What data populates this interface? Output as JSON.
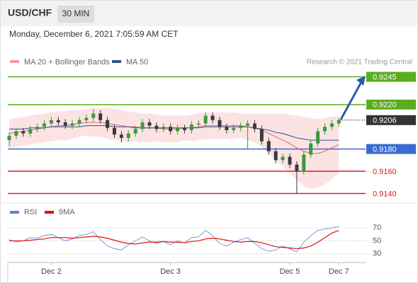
{
  "header": {
    "symbol": "USD/CHF",
    "timeframe": "30 MIN",
    "datetime": "Monday, December 6, 2021 7:05:59 AM CET"
  },
  "chart_data": [
    {
      "type": "candlestick",
      "legend": [
        {
          "name": "MA 20 + Bollinger Bands",
          "color": "#f49a9a"
        },
        {
          "name": "MA 50",
          "color": "#2c5190"
        }
      ],
      "credit": "Research © 2021 Trading Central",
      "categories": [
        null,
        null,
        null,
        null,
        null,
        null,
        "Dec 2",
        null,
        null,
        null,
        null,
        null,
        null,
        null,
        null,
        null,
        null,
        null,
        null,
        null,
        null,
        null,
        null,
        "Dec 3",
        null,
        null,
        null,
        null,
        null,
        null,
        null,
        null,
        null,
        null,
        null,
        null,
        null,
        null,
        null,
        null,
        "Dec 5",
        null,
        null,
        null,
        null,
        null,
        null,
        "Dec 7"
      ],
      "ylim": [
        0.9132,
        0.9253
      ],
      "up_color": "#3a9a3a",
      "down_color": "#3a3a3a",
      "open": [
        0.9188,
        0.9192,
        0.9196,
        0.9194,
        0.9198,
        0.92,
        0.9203,
        0.9206,
        0.9204,
        0.9201,
        0.9203,
        0.9206,
        0.9208,
        0.9212,
        0.9206,
        0.9199,
        0.9193,
        0.919,
        0.9194,
        0.9198,
        0.9204,
        0.9201,
        0.9198,
        0.92,
        0.9196,
        0.9199,
        0.9197,
        0.9202,
        0.9203,
        0.921,
        0.9206,
        0.92,
        0.9197,
        0.9199,
        0.9201,
        0.9203,
        0.9198,
        0.9187,
        0.9178,
        0.917,
        0.9173,
        0.9166,
        0.916,
        0.9175,
        0.9185,
        0.9196,
        0.92,
        0.9203
      ],
      "high": [
        0.9195,
        0.9199,
        0.9199,
        0.9201,
        0.9203,
        0.9206,
        0.9209,
        0.9209,
        0.9207,
        0.9206,
        0.9209,
        0.9211,
        0.9216,
        0.9215,
        0.9209,
        0.9202,
        0.9196,
        0.9197,
        0.9201,
        0.9207,
        0.9207,
        0.9204,
        0.9203,
        0.9203,
        0.9202,
        0.9202,
        0.9205,
        0.9206,
        0.9213,
        0.9213,
        0.9209,
        0.9203,
        0.9202,
        0.9204,
        0.9206,
        0.9206,
        0.9201,
        0.919,
        0.9181,
        0.9176,
        0.9176,
        0.9169,
        0.9178,
        0.9188,
        0.9199,
        0.9203,
        0.9206,
        0.9208
      ],
      "low": [
        0.9182,
        0.9189,
        0.9191,
        0.9191,
        0.9195,
        0.9197,
        0.92,
        0.9201,
        0.9198,
        0.9198,
        0.92,
        0.9203,
        0.9205,
        0.9203,
        0.9196,
        0.919,
        0.9186,
        0.9187,
        0.9191,
        0.9195,
        0.9198,
        0.9195,
        0.9195,
        0.9193,
        0.9193,
        0.9194,
        0.9194,
        0.9199,
        0.92,
        0.9203,
        0.9197,
        0.9194,
        0.9194,
        0.9196,
        0.918,
        0.9195,
        0.9184,
        0.9175,
        0.9167,
        0.9167,
        0.9163,
        0.914,
        0.9157,
        0.9172,
        0.9182,
        0.9193,
        0.9197,
        0.92
      ],
      "close": [
        0.9192,
        0.9196,
        0.9194,
        0.9198,
        0.92,
        0.9203,
        0.9206,
        0.9204,
        0.9201,
        0.9203,
        0.9206,
        0.9208,
        0.9212,
        0.9206,
        0.9199,
        0.9193,
        0.919,
        0.9194,
        0.9198,
        0.9204,
        0.9201,
        0.9198,
        0.92,
        0.9196,
        0.9199,
        0.9197,
        0.9202,
        0.9203,
        0.921,
        0.9206,
        0.92,
        0.9197,
        0.9199,
        0.9201,
        0.9203,
        0.9198,
        0.9187,
        0.9178,
        0.917,
        0.9173,
        0.9166,
        0.916,
        0.9175,
        0.9185,
        0.9196,
        0.92,
        0.9203,
        0.9206
      ],
      "series": [
        {
          "name": "MA 20",
          "color": "#e06060",
          "values": [
            0.9194,
            0.9195,
            0.9196,
            0.9197,
            0.9198,
            0.9199,
            0.92,
            0.9201,
            0.9201,
            0.9202,
            0.9203,
            0.9204,
            0.9204,
            0.9204,
            0.9203,
            0.9202,
            0.9201,
            0.92,
            0.92,
            0.9199,
            0.9199,
            0.9199,
            0.9198,
            0.9198,
            0.9198,
            0.9199,
            0.9199,
            0.92,
            0.9201,
            0.9201,
            0.9201,
            0.9201,
            0.9201,
            0.9201,
            0.92,
            0.9199,
            0.9197,
            0.9194,
            0.9191,
            0.9188,
            0.9185,
            0.9181,
            0.9178,
            0.9176,
            0.9176,
            0.9178,
            0.9181,
            0.9184
          ]
        },
        {
          "name": "MA 50",
          "color": "#2c5190",
          "values": [
            0.9198,
            0.9198,
            0.9198,
            0.9199,
            0.9199,
            0.9199,
            0.92,
            0.92,
            0.92,
            0.92,
            0.92,
            0.9201,
            0.9201,
            0.9201,
            0.9201,
            0.92,
            0.92,
            0.92,
            0.9199,
            0.9199,
            0.9199,
            0.9199,
            0.9199,
            0.9199,
            0.9199,
            0.9199,
            0.9199,
            0.9199,
            0.92,
            0.92,
            0.92,
            0.92,
            0.92,
            0.92,
            0.92,
            0.9199,
            0.9198,
            0.9197,
            0.9195,
            0.9194,
            0.9192,
            0.919,
            0.9189,
            0.9188,
            0.9188,
            0.9188,
            0.9188,
            0.9188
          ]
        }
      ],
      "bands": {
        "color": "#fbdcdc",
        "upper": [
          0.9207,
          0.9208,
          0.9209,
          0.921,
          0.9211,
          0.9212,
          0.9213,
          0.9214,
          0.9214,
          0.9215,
          0.9215,
          0.9216,
          0.9217,
          0.9217,
          0.9217,
          0.9216,
          0.9215,
          0.9214,
          0.9213,
          0.9212,
          0.9212,
          0.9211,
          0.921,
          0.921,
          0.921,
          0.921,
          0.9211,
          0.9212,
          0.9213,
          0.9213,
          0.9213,
          0.9213,
          0.9213,
          0.9212,
          0.9212,
          0.9212,
          0.9212,
          0.9212,
          0.9212,
          0.9212,
          0.9211,
          0.921,
          0.9209,
          0.9208,
          0.9207,
          0.9208,
          0.9209,
          0.921
        ],
        "lower": [
          0.9181,
          0.9182,
          0.9183,
          0.9184,
          0.9185,
          0.9186,
          0.9187,
          0.9188,
          0.9188,
          0.9189,
          0.9191,
          0.9192,
          0.9191,
          0.9191,
          0.9189,
          0.9188,
          0.9187,
          0.9186,
          0.9187,
          0.9186,
          0.9186,
          0.9187,
          0.9186,
          0.9186,
          0.9186,
          0.9188,
          0.9187,
          0.9188,
          0.9189,
          0.9189,
          0.9189,
          0.9189,
          0.9189,
          0.919,
          0.9188,
          0.9186,
          0.9182,
          0.9176,
          0.917,
          0.9164,
          0.9159,
          0.9152,
          0.9147,
          0.9144,
          0.9145,
          0.9148,
          0.9153,
          0.9158
        ]
      },
      "levels": [
        {
          "value": 0.9245,
          "label": "0.9245",
          "color": "#5aad1e",
          "boxed": true,
          "line": "solid"
        },
        {
          "value": 0.922,
          "label": "0.9220",
          "color": "#5aad1e",
          "boxed": true,
          "line": "solid"
        },
        {
          "value": 0.9206,
          "label": "0.9206",
          "color": "#333333",
          "boxed": true,
          "line": "dotted"
        },
        {
          "value": 0.918,
          "label": "0.9180",
          "color": "#3a6bd0",
          "boxed": true,
          "line": "solid"
        },
        {
          "value": 0.916,
          "label": "0.9160",
          "color": "#d42020",
          "boxed": false,
          "line": "solid"
        },
        {
          "value": 0.914,
          "label": "0.9140",
          "color": "#d42020",
          "boxed": false,
          "line": "solid"
        }
      ]
    },
    {
      "type": "line",
      "ylim": [
        20,
        82
      ],
      "yticks": [
        30,
        50,
        70
      ],
      "series": [
        {
          "name": "RSI",
          "color": "#5b7fdd",
          "values": [
            52,
            48,
            50,
            55,
            54,
            58,
            60,
            55,
            50,
            53,
            58,
            60,
            64,
            52,
            42,
            38,
            36,
            44,
            50,
            56,
            50,
            46,
            49,
            44,
            50,
            47,
            55,
            56,
            66,
            58,
            46,
            42,
            48,
            52,
            55,
            46,
            38,
            34,
            36,
            42,
            38,
            33,
            48,
            58,
            66,
            68,
            70,
            72
          ]
        },
        {
          "name": "9MA",
          "color": "#e01010",
          "values": [
            50,
            50,
            50,
            51,
            52,
            53,
            55,
            55,
            55,
            54,
            55,
            56,
            57,
            56,
            54,
            51,
            48,
            46,
            45,
            47,
            48,
            48,
            49,
            48,
            48,
            47,
            49,
            50,
            53,
            54,
            53,
            51,
            49,
            48,
            49,
            49,
            47,
            44,
            41,
            40,
            39,
            38,
            39,
            42,
            48,
            55,
            62,
            66
          ]
        }
      ]
    }
  ]
}
